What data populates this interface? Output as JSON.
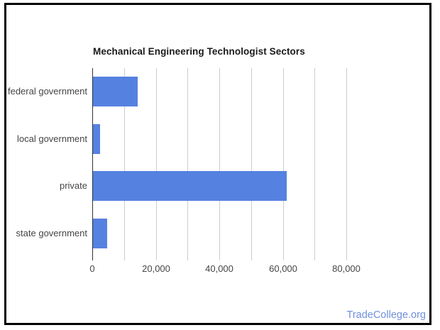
{
  "chart": {
    "title": "Mechanical Engineering Technologist Sectors"
  },
  "watermark": {
    "text": "TradeCollege.org",
    "color": "#6f90dc"
  },
  "colors": {
    "bar": "#5581e0",
    "gridline": "#cccccc",
    "zero_axis": "#333333",
    "labels": "#444444",
    "frame_border": "#000000",
    "background": "#ffffff"
  },
  "chart_data": {
    "type": "bar",
    "orientation": "horizontal",
    "title": "Mechanical Engineering Technologist Sectors",
    "categories": [
      "federal government",
      "local government",
      "private",
      "state government"
    ],
    "values": [
      14000,
      2200,
      61000,
      4400
    ],
    "xlabel": "",
    "ylabel": "",
    "xlim": [
      0,
      80000
    ],
    "x_ticks": [
      0,
      20000,
      40000,
      60000,
      80000
    ],
    "x_tick_labels": [
      "0",
      "20,000",
      "40,000",
      "60,000",
      "80,000"
    ],
    "minor_gridline_interval": 10000,
    "grid": true,
    "legend_position": "none"
  }
}
